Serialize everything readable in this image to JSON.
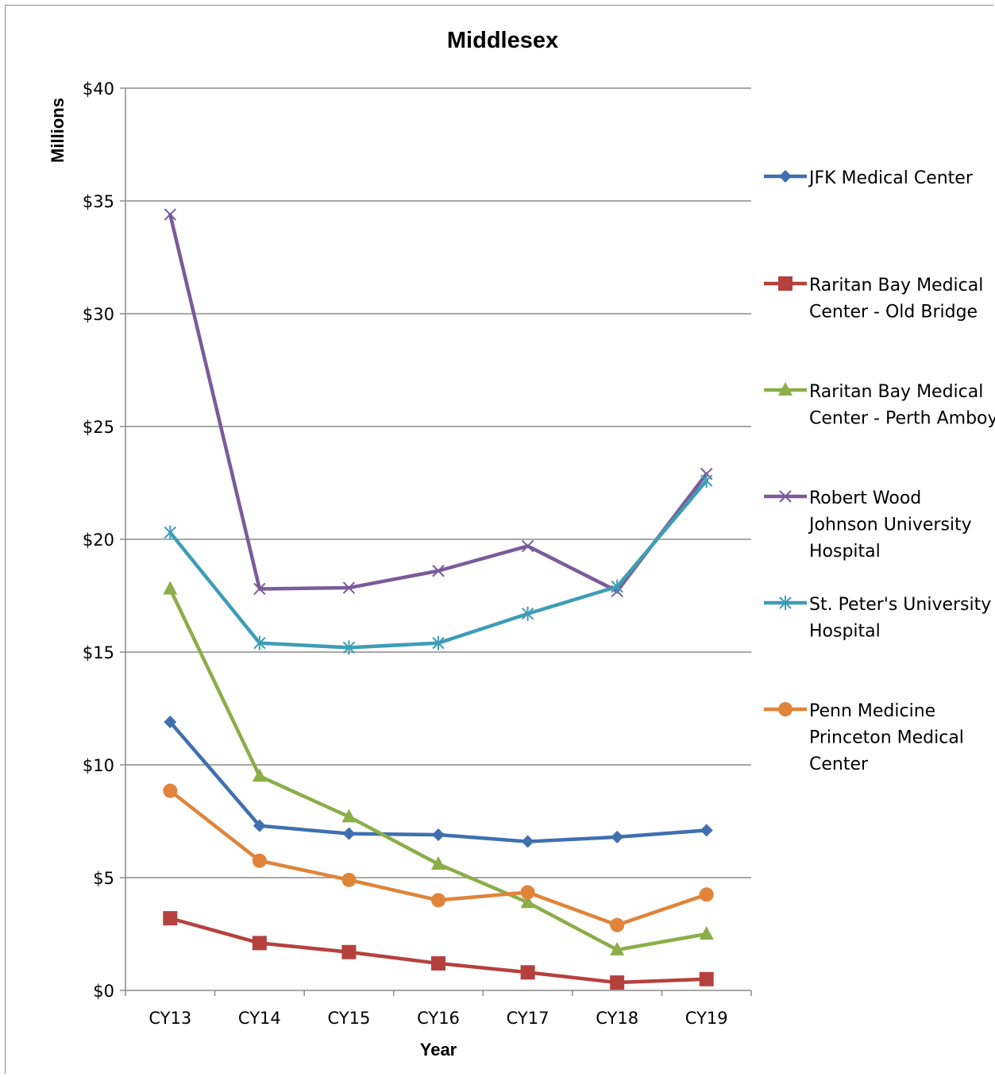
{
  "chart_data": {
    "type": "line",
    "title": "Middlesex",
    "xlabel": "Year",
    "ylabel": "Millions",
    "categories": [
      "CY13",
      "CY14",
      "CY15",
      "CY16",
      "CY17",
      "CY18",
      "CY19"
    ],
    "ylim": [
      0,
      40
    ],
    "yticks": [
      0,
      5,
      10,
      15,
      20,
      25,
      30,
      35,
      40
    ],
    "ytick_labels": [
      "$0",
      "$5",
      "$10",
      "$15",
      "$20",
      "$25",
      "$30",
      "$35",
      "$40"
    ],
    "grid": true,
    "legend_position": "right",
    "series": [
      {
        "name": "JFK Medical Center",
        "legend_lines": [
          "JFK Medical Center"
        ],
        "color": "#3f6fb0",
        "marker": "diamond",
        "values": [
          11.9,
          7.3,
          6.95,
          6.9,
          6.6,
          6.8,
          7.1
        ]
      },
      {
        "name": "Raritan Bay Medical Center - Old Bridge",
        "legend_lines": [
          "Raritan Bay Medical",
          "Center - Old Bridge"
        ],
        "color": "#b5413e",
        "marker": "square",
        "values": [
          3.2,
          2.1,
          1.7,
          1.2,
          0.8,
          0.35,
          0.5
        ]
      },
      {
        "name": "Raritan Bay Medical Center - Perth Amboy",
        "legend_lines": [
          "Raritan Bay Medical",
          "Center - Perth Amboy"
        ],
        "color": "#8bae48",
        "marker": "triangle",
        "values": [
          17.8,
          9.5,
          7.7,
          5.6,
          3.9,
          1.8,
          2.5
        ]
      },
      {
        "name": "Robert Wood Johnson University Hospital",
        "legend_lines": [
          "Robert Wood",
          "Johnson University",
          "Hospital"
        ],
        "color": "#7a5b9a",
        "marker": "x",
        "values": [
          34.4,
          17.8,
          17.85,
          18.6,
          19.7,
          17.7,
          22.9
        ]
      },
      {
        "name": "St. Peter's University Hospital",
        "legend_lines": [
          "St. Peter's University",
          "Hospital"
        ],
        "color": "#3d9db5",
        "marker": "star",
        "values": [
          20.3,
          15.4,
          15.2,
          15.4,
          16.7,
          17.9,
          22.6
        ]
      },
      {
        "name": "Penn Medicine Princeton Medical Center",
        "legend_lines": [
          "Penn Medicine",
          "Princeton Medical",
          "Center"
        ],
        "color": "#e0843a",
        "marker": "circle",
        "values": [
          8.85,
          5.75,
          4.9,
          4.0,
          4.35,
          2.9,
          4.25
        ]
      }
    ]
  }
}
